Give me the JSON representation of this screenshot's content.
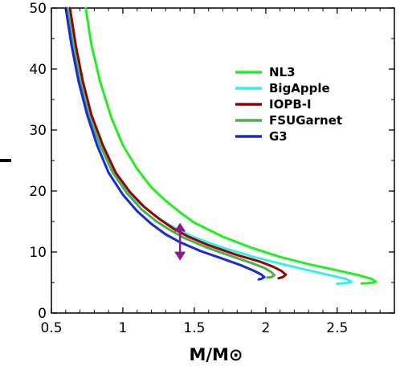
{
  "chart_data": {
    "type": "line",
    "xlabel": "M/M⊙",
    "ylabel": "Ī",
    "xlim": [
      0.5,
      2.9
    ],
    "ylim": [
      0,
      50
    ],
    "xticks": [
      0.5,
      1,
      1.5,
      2,
      2.5
    ],
    "xtick_labels": [
      "0.5",
      "1",
      "1.5",
      "2",
      "2.5"
    ],
    "yticks": [
      0,
      10,
      20,
      30,
      40,
      50
    ],
    "ytick_labels": [
      "0",
      "10",
      "20",
      "30",
      "40",
      "50"
    ],
    "grid": false,
    "legend_position": "top-right",
    "series": [
      {
        "name": "NL3",
        "color": "#22ee22",
        "points": [
          [
            0.74,
            50
          ],
          [
            0.78,
            44
          ],
          [
            0.84,
            38
          ],
          [
            0.92,
            32
          ],
          [
            1.0,
            27.5
          ],
          [
            1.1,
            23.6
          ],
          [
            1.2,
            20.6
          ],
          [
            1.3,
            18.4
          ],
          [
            1.4,
            16.5
          ],
          [
            1.5,
            14.8
          ],
          [
            1.7,
            12.5
          ],
          [
            1.9,
            10.7
          ],
          [
            2.1,
            9.2
          ],
          [
            2.3,
            8
          ],
          [
            2.5,
            7
          ],
          [
            2.65,
            6.2
          ],
          [
            2.74,
            5.6
          ],
          [
            2.77,
            5.1
          ],
          [
            2.72,
            4.9
          ],
          [
            2.67,
            4.85
          ]
        ]
      },
      {
        "name": "BigApple",
        "color": "#33eeee",
        "points": [
          [
            0.62,
            50
          ],
          [
            0.66,
            44
          ],
          [
            0.7,
            38.5
          ],
          [
            0.76,
            33
          ],
          [
            0.82,
            29
          ],
          [
            0.9,
            24.8
          ],
          [
            1.0,
            21
          ],
          [
            1.1,
            18.3
          ],
          [
            1.2,
            16.4
          ],
          [
            1.3,
            14.8
          ],
          [
            1.4,
            13.5
          ],
          [
            1.5,
            12.4
          ],
          [
            1.7,
            10.7
          ],
          [
            1.9,
            9.3
          ],
          [
            2.1,
            8.1
          ],
          [
            2.3,
            7
          ],
          [
            2.45,
            6.2
          ],
          [
            2.56,
            5.6
          ],
          [
            2.6,
            5.1
          ],
          [
            2.56,
            4.9
          ],
          [
            2.5,
            4.8
          ]
        ]
      },
      {
        "name": "IOPB-I",
        "color": "#990000",
        "points": [
          [
            0.63,
            50
          ],
          [
            0.67,
            44
          ],
          [
            0.72,
            38
          ],
          [
            0.78,
            32.5
          ],
          [
            0.86,
            27.5
          ],
          [
            0.95,
            23
          ],
          [
            1.05,
            19.8
          ],
          [
            1.15,
            17.4
          ],
          [
            1.25,
            15.5
          ],
          [
            1.35,
            13.9
          ],
          [
            1.45,
            12.6
          ],
          [
            1.6,
            11.1
          ],
          [
            1.8,
            9.5
          ],
          [
            1.95,
            8.5
          ],
          [
            2.05,
            7.6
          ],
          [
            2.11,
            6.9
          ],
          [
            2.14,
            6.3
          ],
          [
            2.12,
            5.9
          ],
          [
            2.09,
            5.7
          ]
        ]
      },
      {
        "name": "FSUGarnet",
        "color": "#4caf50",
        "points": [
          [
            0.61,
            50
          ],
          [
            0.65,
            44
          ],
          [
            0.7,
            38
          ],
          [
            0.76,
            32.5
          ],
          [
            0.84,
            27.5
          ],
          [
            0.93,
            23
          ],
          [
            1.03,
            19.6
          ],
          [
            1.13,
            17
          ],
          [
            1.23,
            15.1
          ],
          [
            1.33,
            13.6
          ],
          [
            1.43,
            12.3
          ],
          [
            1.58,
            10.8
          ],
          [
            1.75,
            9.4
          ],
          [
            1.9,
            8.2
          ],
          [
            1.99,
            7.4
          ],
          [
            2.04,
            6.7
          ],
          [
            2.06,
            6.2
          ],
          [
            2.04,
            5.9
          ],
          [
            2.01,
            5.8
          ]
        ]
      },
      {
        "name": "G3",
        "color": "#1a2ad8",
        "points": [
          [
            0.6,
            50
          ],
          [
            0.64,
            44
          ],
          [
            0.69,
            38
          ],
          [
            0.75,
            32.5
          ],
          [
            0.82,
            27.5
          ],
          [
            0.9,
            23
          ],
          [
            1.0,
            19.4
          ],
          [
            1.1,
            16.7
          ],
          [
            1.2,
            14.6
          ],
          [
            1.3,
            12.9
          ],
          [
            1.4,
            11.6
          ],
          [
            1.55,
            10.1
          ],
          [
            1.7,
            8.9
          ],
          [
            1.83,
            7.8
          ],
          [
            1.92,
            6.9
          ],
          [
            1.97,
            6.3
          ],
          [
            1.99,
            5.9
          ],
          [
            1.97,
            5.6
          ],
          [
            1.95,
            5.5
          ]
        ]
      }
    ],
    "annotations": [
      {
        "type": "double-arrow",
        "color": "#8b1a8b",
        "x": 1.4,
        "y_from": 14.8,
        "y_to": 8.6
      }
    ]
  }
}
